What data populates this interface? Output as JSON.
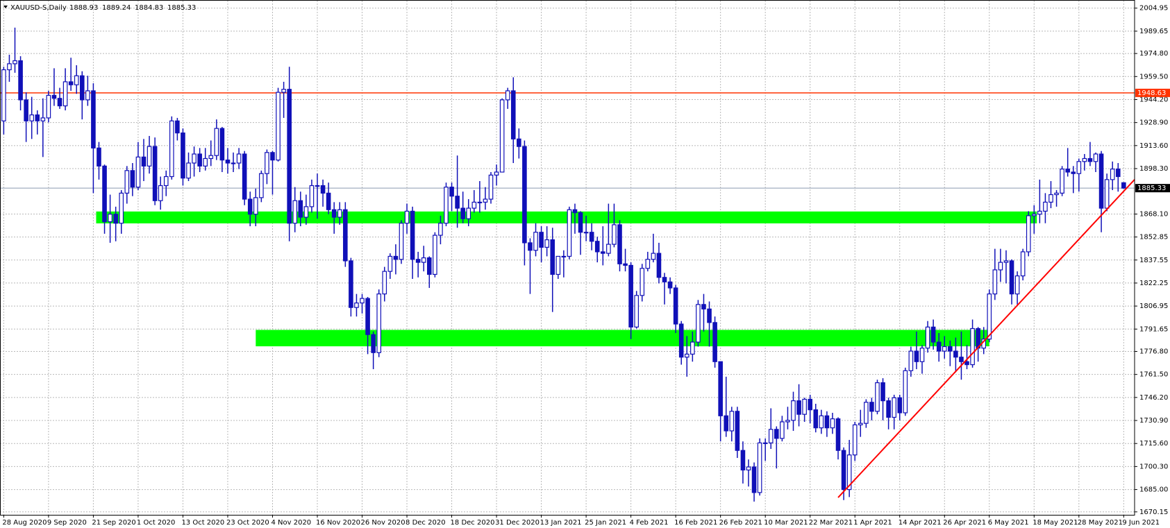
{
  "chart_data": {
    "type": "candlestick",
    "title": "XAUUSD-S,Daily",
    "up_color": "#ffffff",
    "down_color": "#1010b8",
    "edge_color": "#1010b8",
    "ylim": [
      1668.2,
      2009.9
    ],
    "yticks": [
      2004.95,
      1989.65,
      {
        "value": 1974.8,
        "label": "1974.80"
      },
      {
        "value": 1959.5,
        "label": "1959.50"
      },
      {
        "value": 1944.2,
        "label": "1944.20"
      },
      {
        "value": 1928.9,
        "label": "1928.90"
      },
      {
        "value": 1913.6,
        "label": "1913.60"
      },
      {
        "value": 1898.3,
        "label": "1898.30"
      },
      {
        "value": 1868.1,
        "label": "1868.10"
      },
      1852.85,
      1837.55,
      1822.25,
      1806.95,
      1791.65,
      {
        "value": 1776.8,
        "label": "1776.80"
      },
      {
        "value": 1761.5,
        "label": "1761.50"
      },
      {
        "value": 1746.2,
        "label": "1746.20"
      },
      {
        "value": 1730.9,
        "label": "1730.90"
      },
      {
        "value": 1715.6,
        "label": "1715.60"
      },
      {
        "value": 1700.3,
        "label": "1700.30"
      },
      {
        "value": 1685,
        "label": "1685.00"
      },
      1670.15
    ],
    "grid": true,
    "hline": {
      "value": 1948.63,
      "color": "#ff3300"
    },
    "zones": [
      {
        "start": 17,
        "end": 184,
        "from": 1861.9,
        "to": 1869.8,
        "color": "#00ff00"
      },
      {
        "start": 45.5,
        "end": 175.5,
        "from": 1780.2,
        "to": 1791.1,
        "color": "#00ff00"
      }
    ],
    "trendline": {
      "x": [
        149,
        202.7
      ],
      "y": [
        1679.7,
        1891
      ],
      "color": "#ff0000"
    },
    "categories": [
      "28 Aug 2020",
      null,
      null,
      null,
      null,
      null,
      null,
      null,
      "9 Sep 2020",
      null,
      null,
      null,
      null,
      null,
      null,
      null,
      "21 Sep 2020",
      null,
      null,
      null,
      null,
      null,
      null,
      null,
      "1 Oct 2020",
      null,
      null,
      null,
      null,
      null,
      null,
      null,
      "13 Oct 2020",
      null,
      null,
      null,
      null,
      null,
      null,
      null,
      "23 Oct 2020",
      null,
      null,
      null,
      null,
      null,
      null,
      null,
      "4 Nov 2020",
      null,
      null,
      null,
      null,
      null,
      null,
      null,
      "16 Nov 2020",
      null,
      null,
      null,
      null,
      null,
      null,
      null,
      "26 Nov 2020",
      null,
      null,
      null,
      null,
      null,
      null,
      null,
      "8 Dec 2020",
      null,
      null,
      null,
      null,
      null,
      null,
      null,
      "18 Dec 2020",
      null,
      null,
      null,
      null,
      null,
      null,
      null,
      "31 Dec 2020",
      null,
      null,
      null,
      null,
      null,
      null,
      null,
      "13 Jan 2021",
      null,
      null,
      null,
      null,
      null,
      null,
      null,
      "25 Jan 2021",
      null,
      null,
      null,
      null,
      null,
      null,
      null,
      "4 Feb 2021",
      null,
      null,
      null,
      null,
      null,
      null,
      null,
      "16 Feb 2021",
      null,
      null,
      null,
      null,
      null,
      null,
      null,
      "26 Feb 2021",
      null,
      null,
      null,
      null,
      null,
      null,
      null,
      "10 Mar 2021",
      null,
      null,
      null,
      null,
      null,
      null,
      null,
      "22 Mar 2021",
      null,
      null,
      null,
      null,
      null,
      null,
      null,
      "1 Apr 2021",
      null,
      null,
      null,
      null,
      null,
      null,
      null,
      "14 Apr 2021",
      null,
      null,
      null,
      null,
      null,
      null,
      null,
      "26 Apr 2021",
      null,
      null,
      null,
      null,
      null,
      null,
      null,
      "6 May 2021",
      null,
      null,
      null,
      null,
      null,
      null,
      null,
      "18 May 2021",
      null,
      null,
      null,
      null,
      null,
      null,
      null,
      "28 May 2021",
      null,
      null,
      null,
      null,
      null,
      null,
      null,
      "9 Jun 2021"
    ],
    "candles": [
      [
        1930,
        1966,
        1921,
        1964
      ],
      [
        1964,
        1974,
        1956,
        1968
      ],
      [
        1968,
        1992,
        1962,
        1970
      ],
      [
        1970,
        1973,
        1937,
        1944
      ],
      [
        1944,
        1949,
        1916,
        1930
      ],
      [
        1930,
        1946,
        1918,
        1934
      ],
      [
        1934,
        1937,
        1921,
        1930
      ],
      [
        1930,
        1945,
        1906,
        1932
      ],
      [
        1932,
        1950,
        1929,
        1947
      ],
      [
        1947,
        1965,
        1940,
        1945
      ],
      [
        1945,
        1952,
        1938,
        1940
      ],
      [
        1940,
        1965,
        1937,
        1956
      ],
      [
        1956,
        1972,
        1950,
        1954
      ],
      [
        1954,
        1967,
        1948,
        1960
      ],
      [
        1960,
        1963,
        1931,
        1944
      ],
      [
        1944,
        1960,
        1940,
        1950
      ],
      [
        1950,
        1955,
        1882,
        1912
      ],
      [
        1912,
        1916,
        1891,
        1900
      ],
      [
        1900,
        1901,
        1855,
        1863
      ],
      [
        1863,
        1881,
        1849,
        1868
      ],
      [
        1868,
        1873,
        1850,
        1862
      ],
      [
        1862,
        1884,
        1855,
        1882
      ],
      [
        1882,
        1900,
        1875,
        1897
      ],
      [
        1897,
        1902,
        1880,
        1886
      ],
      [
        1886,
        1916,
        1884,
        1906
      ],
      [
        1906,
        1918,
        1890,
        1900
      ],
      [
        1900,
        1920,
        1895,
        1913
      ],
      [
        1913,
        1919,
        1874,
        1877
      ],
      [
        1877,
        1893,
        1871,
        1887
      ],
      [
        1887,
        1897,
        1880,
        1893
      ],
      [
        1893,
        1933,
        1891,
        1930
      ],
      [
        1930,
        1932,
        1917,
        1922
      ],
      [
        1922,
        1925,
        1887,
        1892
      ],
      [
        1892,
        1909,
        1890,
        1902
      ],
      [
        1902,
        1913,
        1893,
        1908
      ],
      [
        1908,
        1912,
        1896,
        1900
      ],
      [
        1900,
        1912,
        1897,
        1905
      ],
      [
        1905,
        1917,
        1900,
        1907
      ],
      [
        1907,
        1931,
        1904,
        1925
      ],
      [
        1925,
        1926,
        1896,
        1904
      ],
      [
        1904,
        1912,
        1895,
        1902
      ],
      [
        1902,
        1909,
        1896,
        1902
      ],
      [
        1902,
        1912,
        1898,
        1908
      ],
      [
        1908,
        1910,
        1874,
        1878
      ],
      [
        1878,
        1883,
        1860,
        1868
      ],
      [
        1868,
        1885,
        1860,
        1879
      ],
      [
        1879,
        1897,
        1876,
        1895
      ],
      [
        1895,
        1911,
        1888,
        1909
      ],
      [
        1909,
        1910,
        1881,
        1904
      ],
      [
        1904,
        1952,
        1903,
        1949
      ],
      [
        1949,
        1956,
        1932,
        1951
      ],
      [
        1951,
        1966,
        1850,
        1862
      ],
      [
        1862,
        1886,
        1856,
        1877
      ],
      [
        1877,
        1883,
        1860,
        1866
      ],
      [
        1866,
        1881,
        1861,
        1873
      ],
      [
        1873,
        1891,
        1869,
        1887
      ],
      [
        1887,
        1895,
        1865,
        1887
      ],
      [
        1887,
        1891,
        1873,
        1882
      ],
      [
        1882,
        1889,
        1868,
        1871
      ],
      [
        1871,
        1876,
        1855,
        1866
      ],
      [
        1866,
        1876,
        1861,
        1871
      ],
      [
        1871,
        1876,
        1833,
        1837
      ],
      [
        1837,
        1839,
        1800,
        1806
      ],
      [
        1806,
        1815,
        1800,
        1809
      ],
      [
        1809,
        1815,
        1802,
        1812
      ],
      [
        1812,
        1813,
        1775,
        1788
      ],
      [
        1788,
        1790,
        1765,
        1776
      ],
      [
        1776,
        1818,
        1773,
        1815
      ],
      [
        1815,
        1833,
        1810,
        1830
      ],
      [
        1830,
        1842,
        1825,
        1840
      ],
      [
        1840,
        1848,
        1828,
        1838
      ],
      [
        1838,
        1864,
        1835,
        1862
      ],
      [
        1862,
        1875,
        1855,
        1870
      ],
      [
        1870,
        1873,
        1825,
        1838
      ],
      [
        1838,
        1843,
        1826,
        1836
      ],
      [
        1836,
        1847,
        1830,
        1839
      ],
      [
        1839,
        1840,
        1819,
        1828
      ],
      [
        1828,
        1856,
        1826,
        1854
      ],
      [
        1854,
        1867,
        1848,
        1862
      ],
      [
        1862,
        1889,
        1860,
        1886
      ],
      [
        1886,
        1889,
        1870,
        1880
      ],
      [
        1880,
        1907,
        1859,
        1872
      ],
      [
        1872,
        1883,
        1862,
        1865
      ],
      [
        1865,
        1878,
        1860,
        1872
      ],
      [
        1872,
        1884,
        1869,
        1876
      ],
      [
        1876,
        1890,
        1869,
        1876
      ],
      [
        1876,
        1886,
        1871,
        1878
      ],
      [
        1878,
        1896,
        1875,
        1894
      ],
      [
        1894,
        1901,
        1887,
        1896
      ],
      [
        1896,
        1945,
        1896,
        1944
      ],
      [
        1944,
        1952,
        1938,
        1950
      ],
      [
        1950,
        1959,
        1902,
        1918
      ],
      [
        1918,
        1925,
        1905,
        1913
      ],
      [
        1913,
        1917,
        1834,
        1849
      ],
      [
        1849,
        1852,
        1815,
        1844
      ],
      [
        1844,
        1862,
        1840,
        1856
      ],
      [
        1856,
        1860,
        1836,
        1846
      ],
      [
        1846,
        1860,
        1840,
        1851
      ],
      [
        1851,
        1859,
        1803,
        1828
      ],
      [
        1828,
        1840,
        1825,
        1840
      ],
      [
        1840,
        1844,
        1826,
        1840
      ],
      [
        1840,
        1873,
        1838,
        1871
      ],
      [
        1871,
        1875,
        1855,
        1869
      ],
      [
        1869,
        1870,
        1841,
        1856
      ],
      [
        1856,
        1867,
        1850,
        1856
      ],
      [
        1856,
        1862,
        1844,
        1850
      ],
      [
        1850,
        1853,
        1836,
        1843
      ],
      [
        1843,
        1860,
        1834,
        1842
      ],
      [
        1842,
        1875,
        1840,
        1848
      ],
      [
        1848,
        1875,
        1846,
        1861
      ],
      [
        1861,
        1864,
        1830,
        1835
      ],
      [
        1835,
        1845,
        1830,
        1834
      ],
      [
        1834,
        1836,
        1785,
        1793
      ],
      [
        1793,
        1817,
        1792,
        1814
      ],
      [
        1814,
        1835,
        1810,
        1832
      ],
      [
        1832,
        1843,
        1830,
        1838
      ],
      [
        1838,
        1855,
        1836,
        1842
      ],
      [
        1842,
        1849,
        1822,
        1826
      ],
      [
        1826,
        1829,
        1808,
        1823
      ],
      [
        1823,
        1826,
        1815,
        1819
      ],
      [
        1819,
        1821,
        1789,
        1795
      ],
      [
        1795,
        1797,
        1768,
        1773
      ],
      [
        1773,
        1787,
        1760,
        1775
      ],
      [
        1775,
        1790,
        1770,
        1783
      ],
      [
        1783,
        1811,
        1780,
        1808
      ],
      [
        1808,
        1815,
        1790,
        1805
      ],
      [
        1805,
        1810,
        1780,
        1796
      ],
      [
        1796,
        1800,
        1766,
        1770
      ],
      [
        1770,
        1770,
        1717,
        1734
      ],
      [
        1734,
        1760,
        1720,
        1724
      ],
      [
        1724,
        1740,
        1717,
        1737
      ],
      [
        1737,
        1740,
        1706,
        1711
      ],
      [
        1711,
        1717,
        1689,
        1698
      ],
      [
        1698,
        1705,
        1687,
        1700
      ],
      [
        1700,
        1703,
        1677,
        1683
      ],
      [
        1683,
        1719,
        1681,
        1716
      ],
      [
        1716,
        1719,
        1704,
        1716
      ],
      [
        1716,
        1739,
        1712,
        1725
      ],
      [
        1725,
        1727,
        1699,
        1719
      ],
      [
        1719,
        1734,
        1717,
        1730
      ],
      [
        1730,
        1740,
        1725,
        1731
      ],
      [
        1731,
        1750,
        1724,
        1744
      ],
      [
        1744,
        1755,
        1727,
        1735
      ],
      [
        1735,
        1746,
        1730,
        1745
      ],
      [
        1745,
        1748,
        1729,
        1738
      ],
      [
        1738,
        1742,
        1723,
        1726
      ],
      [
        1726,
        1738,
        1722,
        1734
      ],
      [
        1734,
        1737,
        1720,
        1726
      ],
      [
        1726,
        1736,
        1722,
        1732
      ],
      [
        1732,
        1733,
        1705,
        1711
      ],
      [
        1711,
        1713,
        1678,
        1685
      ],
      [
        1685,
        1718,
        1680,
        1708
      ],
      [
        1708,
        1730,
        1704,
        1728
      ],
      [
        1728,
        1738,
        1720,
        1729
      ],
      [
        1729,
        1745,
        1726,
        1743
      ],
      [
        1743,
        1746,
        1731,
        1737
      ],
      [
        1737,
        1758,
        1735,
        1756
      ],
      [
        1756,
        1759,
        1731,
        1744
      ],
      [
        1744,
        1746,
        1725,
        1733
      ],
      [
        1733,
        1748,
        1725,
        1746
      ],
      [
        1746,
        1748,
        1731,
        1736
      ],
      [
        1736,
        1766,
        1734,
        1764
      ],
      [
        1764,
        1780,
        1760,
        1777
      ],
      [
        1777,
        1790,
        1765,
        1770
      ],
      [
        1770,
        1781,
        1762,
        1779
      ],
      [
        1779,
        1797,
        1776,
        1793
      ],
      [
        1793,
        1798,
        1778,
        1783
      ],
      [
        1783,
        1789,
        1770,
        1777
      ],
      [
        1777,
        1787,
        1772,
        1780
      ],
      [
        1780,
        1784,
        1767,
        1777
      ],
      [
        1777,
        1786,
        1763,
        1773
      ],
      [
        1773,
        1790,
        1758,
        1770
      ],
      [
        1770,
        1781,
        1765,
        1768
      ],
      [
        1768,
        1798,
        1766,
        1792
      ],
      [
        1792,
        1793,
        1770,
        1779
      ],
      [
        1779,
        1793,
        1775,
        1785
      ],
      [
        1785,
        1818,
        1783,
        1815
      ],
      [
        1815,
        1845,
        1811,
        1831
      ],
      [
        1831,
        1845,
        1823,
        1836
      ],
      [
        1836,
        1844,
        1822,
        1837
      ],
      [
        1837,
        1838,
        1808,
        1815
      ],
      [
        1815,
        1830,
        1808,
        1827
      ],
      [
        1827,
        1845,
        1824,
        1843
      ],
      [
        1843,
        1870,
        1840,
        1867
      ],
      [
        1867,
        1874,
        1855,
        1868
      ],
      [
        1868,
        1891,
        1862,
        1870
      ],
      [
        1870,
        1882,
        1862,
        1876
      ],
      [
        1876,
        1890,
        1872,
        1881
      ],
      [
        1881,
        1884,
        1873,
        1882
      ],
      [
        1882,
        1900,
        1880,
        1898
      ],
      [
        1898,
        1912,
        1893,
        1896
      ],
      [
        1896,
        1900,
        1882,
        1895
      ],
      [
        1895,
        1905,
        1883,
        1903
      ],
      [
        1903,
        1908,
        1897,
        1905
      ],
      [
        1905,
        1916,
        1900,
        1903
      ],
      [
        1903,
        1909,
        1896,
        1908
      ],
      [
        1908,
        1910,
        1856,
        1872
      ],
      [
        1872,
        1895,
        1870,
        1891
      ],
      [
        1891,
        1903,
        1884,
        1898
      ],
      [
        1898,
        1902,
        1883,
        1893
      ],
      [
        1888.93,
        1889.24,
        1884.83,
        1885.33
      ]
    ]
  }
}
